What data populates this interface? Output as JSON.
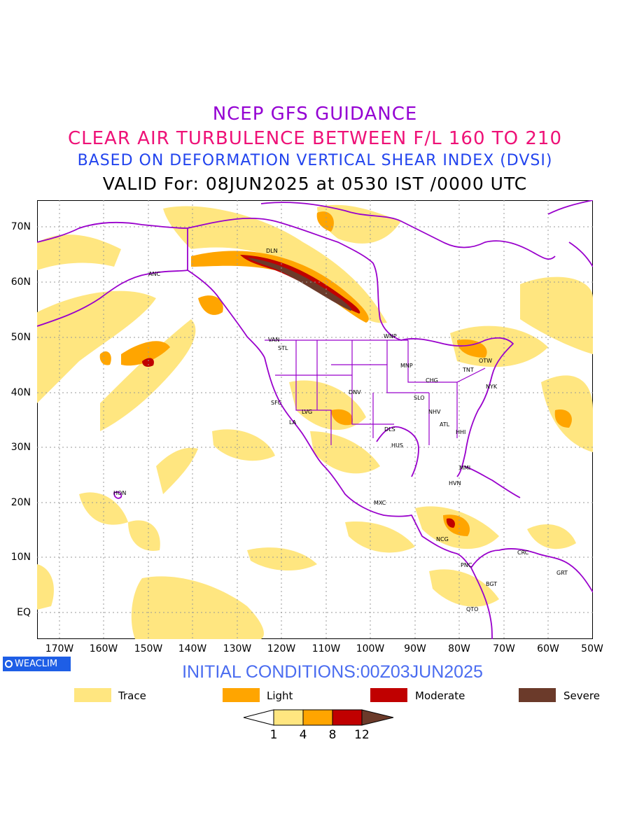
{
  "titles": {
    "line1": {
      "text": "NCEP GFS GUIDANCE",
      "color": "#9400d3"
    },
    "line2": {
      "text": "CLEAR AIR TURBULENCE BETWEEN F/L 160 TO 210",
      "color": "#ee1177"
    },
    "line3": {
      "text": "BASED ON DEFORMATION VERTICAL SHEAR INDEX (DVSI)",
      "color": "#2244ee"
    },
    "line4": {
      "text": "VALID For: 08JUN2025 at 0530 IST /0000 UTC",
      "color": "#000000"
    }
  },
  "map": {
    "latitude_labels": [
      "70N",
      "60N",
      "50N",
      "40N",
      "30N",
      "20N",
      "10N",
      "EQ"
    ],
    "longitude_labels": [
      "170W",
      "160W",
      "150W",
      "140W",
      "130W",
      "120W",
      "110W",
      "100W",
      "90W",
      "80W",
      "70W",
      "60W",
      "50W"
    ],
    "boundary_color": "#9900cc",
    "cities": [
      {
        "code": "DLN"
      },
      {
        "code": "ANC"
      },
      {
        "code": "VAN"
      },
      {
        "code": "STL"
      },
      {
        "code": "WNP"
      },
      {
        "code": "MNP"
      },
      {
        "code": "OTW"
      },
      {
        "code": "TNT"
      },
      {
        "code": "CHG"
      },
      {
        "code": "NYK"
      },
      {
        "code": "DNV"
      },
      {
        "code": "SFC"
      },
      {
        "code": "LVG"
      },
      {
        "code": "SLO"
      },
      {
        "code": "LA"
      },
      {
        "code": "NHV"
      },
      {
        "code": "ATL"
      },
      {
        "code": "DLS"
      },
      {
        "code": "HHI"
      },
      {
        "code": "HUS"
      },
      {
        "code": "MMI"
      },
      {
        "code": "HVN"
      },
      {
        "code": "HON"
      },
      {
        "code": "MXC"
      },
      {
        "code": "NCG"
      },
      {
        "code": "CRC"
      },
      {
        "code": "PNC"
      },
      {
        "code": "GRT"
      },
      {
        "code": "BGT"
      },
      {
        "code": "QTO"
      }
    ]
  },
  "badge": {
    "text": "WEACLIM",
    "icon": "circle-icon",
    "color": "#1e5ee6"
  },
  "initial_conditions": {
    "text": "INITIAL CONDITIONS:00Z03JUN2025",
    "color": "#4a6cf0"
  },
  "legend": [
    {
      "label": "Trace",
      "color": "#ffe680"
    },
    {
      "label": "Light",
      "color": "#ffa500"
    },
    {
      "label": "Moderate",
      "color": "#c00000"
    },
    {
      "label": "Severe",
      "color": "#6b3a2a"
    }
  ],
  "colorbar": {
    "ticks": [
      "1",
      "4",
      "8",
      "12"
    ],
    "colors": [
      "#ffffff",
      "#ffe680",
      "#ffa500",
      "#c00000",
      "#6b3a2a"
    ]
  }
}
